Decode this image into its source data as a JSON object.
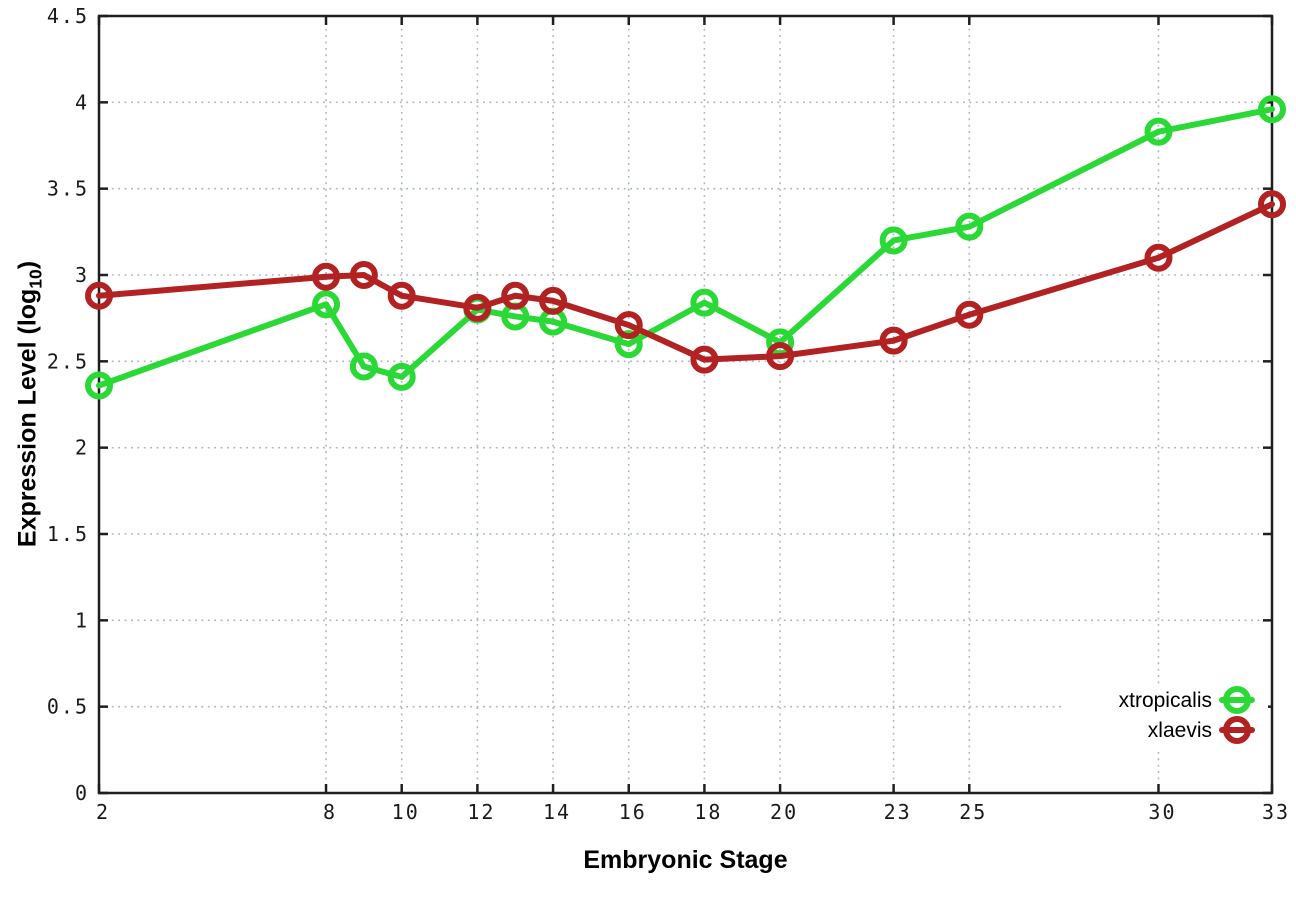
{
  "chart_data": {
    "type": "line",
    "title": "",
    "xlabel": "Embryonic Stage",
    "ylabel": "Expression Level (log10)",
    "ylabel_parts": {
      "prefix": "Expression Level (log",
      "sub": "10",
      "suffix": ")"
    },
    "xlim": [
      2,
      33
    ],
    "ylim": [
      0,
      4.5
    ],
    "grid": true,
    "legend_position": "inside-bottom-right",
    "x_ticks": [
      {
        "v": 2,
        "label": "2"
      },
      {
        "v": 8,
        "label": "8"
      },
      {
        "v": 10,
        "label": "10"
      },
      {
        "v": 12,
        "label": "12"
      },
      {
        "v": 14,
        "label": "14"
      },
      {
        "v": 16,
        "label": "16"
      },
      {
        "v": 18,
        "label": "18"
      },
      {
        "v": 20,
        "label": "20"
      },
      {
        "v": 23,
        "label": "23"
      },
      {
        "v": 25,
        "label": "25"
      },
      {
        "v": 30,
        "label": "30"
      },
      {
        "v": 33,
        "label": "33"
      }
    ],
    "y_ticks": [
      {
        "v": 0,
        "label": "0"
      },
      {
        "v": 0.5,
        "label": "0.5"
      },
      {
        "v": 1,
        "label": "1"
      },
      {
        "v": 1.5,
        "label": "1.5"
      },
      {
        "v": 2,
        "label": "2"
      },
      {
        "v": 2.5,
        "label": "2.5"
      },
      {
        "v": 3,
        "label": "3"
      },
      {
        "v": 3.5,
        "label": "3.5"
      },
      {
        "v": 4,
        "label": "4"
      },
      {
        "v": 4.5,
        "label": "4.5"
      }
    ],
    "series": [
      {
        "name": "xtropicalis",
        "color": "#2bd936",
        "marker": "open-circle",
        "points": [
          [
            2,
            2.36
          ],
          [
            8,
            2.83
          ],
          [
            9,
            2.47
          ],
          [
            10,
            2.41
          ],
          [
            12,
            2.8
          ],
          [
            13,
            2.76
          ],
          [
            14,
            2.73
          ],
          [
            16,
            2.6
          ],
          [
            18,
            2.84
          ],
          [
            20,
            2.61
          ],
          [
            23,
            3.2
          ],
          [
            25,
            3.28
          ],
          [
            30,
            3.83
          ],
          [
            33,
            3.96
          ]
        ]
      },
      {
        "name": "xlaevis",
        "color": "#b22222",
        "marker": "open-circle",
        "points": [
          [
            2,
            2.88
          ],
          [
            8,
            2.99
          ],
          [
            9,
            3.0
          ],
          [
            10,
            2.88
          ],
          [
            12,
            2.81
          ],
          [
            13,
            2.88
          ],
          [
            14,
            2.85
          ],
          [
            16,
            2.71
          ],
          [
            18,
            2.51
          ],
          [
            20,
            2.53
          ],
          [
            23,
            2.62
          ],
          [
            25,
            2.77
          ],
          [
            30,
            3.1
          ],
          [
            33,
            3.41
          ]
        ]
      }
    ]
  },
  "colors": {
    "background": "#ffffff",
    "axis": "#1f1f1f",
    "grid": "#a9b7bd",
    "text": "#000000"
  }
}
